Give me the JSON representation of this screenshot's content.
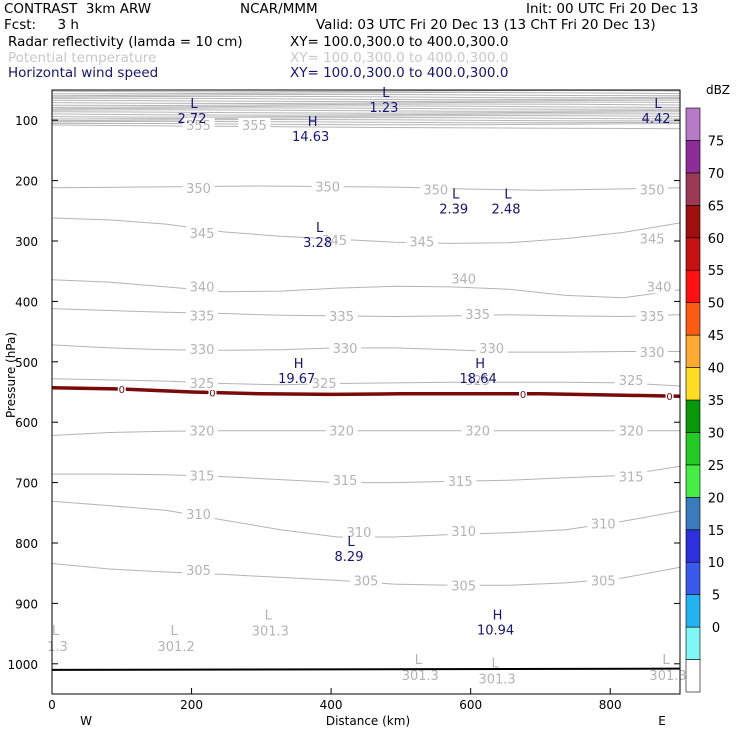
{
  "header": {
    "line1_left": "CONTRAST  3km ARW",
    "line1_center": "NCAR/MMM",
    "line1_right": "Init: 00 UTC Fri 20 Dec 13",
    "line2_left": "Fcst:     3 h",
    "line2_right": "Valid: 03 UTC Fri 20 Dec 13 (13 ChT Fri 20 Dec 13)",
    "fields": [
      {
        "name": "Radar reflectivity (lamda = 10 cm)",
        "xy": "XY= 100.0,300.0 to 400.0,300.0",
        "color": "#000000"
      },
      {
        "name": "Potential temperature",
        "xy": "XY= 100.0,300.0 to 400.0,300.0",
        "color": "#c8c8c8"
      },
      {
        "name": "Horizontal wind speed",
        "xy": "XY= 100.0,300.0 to 400.0,300.0",
        "color": "#14147a"
      }
    ]
  },
  "chart_data": {
    "type": "line",
    "xlabel": "Distance (km)",
    "ylabel": "Pressure (hPa)",
    "x_ticks": [
      0,
      200,
      400,
      600,
      800
    ],
    "xlim": [
      0,
      900
    ],
    "y_ticks": [
      100,
      200,
      300,
      400,
      500,
      600,
      700,
      800,
      900,
      1000
    ],
    "ylim": [
      50,
      1050
    ],
    "x_end_labels": {
      "left": "W",
      "right": "E"
    },
    "colorbar": {
      "unit": "dBZ",
      "levels": [
        0,
        5,
        10,
        15,
        20,
        25,
        30,
        35,
        40,
        45,
        50,
        55,
        60,
        65,
        70,
        75
      ],
      "colors": [
        "#ffffff",
        "#7ff7f7",
        "#22b4f0",
        "#3a5aee",
        "#2e2fe0",
        "#3a7bbd",
        "#44ee44",
        "#22cc22",
        "#079907",
        "#ffdd22",
        "#ffaa33",
        "#ff5a11",
        "#ff1111",
        "#c81111",
        "#a01010",
        "#9c3a55",
        "#8e2c9a",
        "#b87ac8"
      ]
    },
    "theta_contours": [
      {
        "label": "355",
        "p": [
          108,
          110,
          112,
          113,
          114
        ]
      },
      {
        "label": "350",
        "p": [
          212,
          211,
          210,
          209,
          210,
          211,
          214,
          216,
          214,
          212
        ]
      },
      {
        "label": "345",
        "p": [
          262,
          265,
          272,
          285,
          292,
          297,
          302,
          304,
          303,
          296,
          286,
          270
        ]
      },
      {
        "label": "340",
        "p": [
          364,
          368,
          376,
          384,
          383,
          378,
          375,
          376,
          380,
          390,
          394,
          381
        ]
      },
      {
        "label": "335",
        "p": [
          412,
          415,
          418,
          420,
          423,
          424,
          425,
          424,
          422,
          424,
          425,
          422
        ]
      },
      {
        "label": "330",
        "p": [
          472,
          477,
          480,
          481,
          480,
          477,
          477,
          480,
          484,
          484,
          483,
          483
        ]
      },
      {
        "label": "325",
        "p": [
          528,
          530,
          532,
          536,
          538,
          536,
          535,
          534,
          534,
          534,
          535,
          540
        ]
      },
      {
        "label": "320",
        "p": [
          622,
          617,
          615,
          614,
          614,
          614,
          614,
          614,
          614,
          614,
          614,
          614
        ]
      },
      {
        "label": "315",
        "p": [
          686,
          686,
          687,
          690,
          695,
          700,
          700,
          698,
          696,
          692,
          688,
          673
        ]
      },
      {
        "label": "310",
        "p": [
          731,
          738,
          746,
          762,
          778,
          790,
          790,
          786,
          783,
          778,
          764,
          747
        ]
      },
      {
        "label": "305",
        "p": [
          834,
          843,
          848,
          852,
          857,
          862,
          868,
          870,
          870,
          866,
          858,
          840
        ]
      }
    ],
    "theta_label_positions": [
      [
        210,
        108
      ],
      [
        290,
        108
      ],
      [
        210,
        212
      ],
      [
        395,
        210
      ],
      [
        550,
        215
      ],
      [
        860,
        215
      ],
      [
        215,
        287
      ],
      [
        405,
        298
      ],
      [
        530,
        301
      ],
      [
        860,
        296
      ],
      [
        215,
        375
      ],
      [
        590,
        362
      ],
      [
        870,
        375
      ],
      [
        215,
        423
      ],
      [
        415,
        424
      ],
      [
        610,
        421
      ],
      [
        860,
        424
      ],
      [
        215,
        479
      ],
      [
        420,
        477
      ],
      [
        630,
        477
      ],
      [
        860,
        484
      ],
      [
        215,
        535
      ],
      [
        390,
        535
      ],
      [
        610,
        530
      ],
      [
        830,
        530
      ],
      [
        215,
        614
      ],
      [
        415,
        614
      ],
      [
        610,
        614
      ],
      [
        830,
        614
      ],
      [
        215,
        688
      ],
      [
        420,
        696
      ],
      [
        585,
        697
      ],
      [
        830,
        690
      ],
      [
        210,
        752
      ],
      [
        440,
        782
      ],
      [
        590,
        780
      ],
      [
        790,
        768
      ],
      [
        210,
        845
      ],
      [
        450,
        862
      ],
      [
        590,
        870
      ],
      [
        790,
        862
      ]
    ],
    "zero_dbz_line": {
      "label": "0",
      "x": [
        0,
        100,
        200,
        300,
        400,
        500,
        600,
        700,
        800,
        900
      ],
      "p": [
        543,
        545,
        550,
        553,
        554,
        553,
        553,
        553,
        555,
        557
      ],
      "label_x": [
        100,
        230,
        675,
        885
      ]
    },
    "wind_speed_extrema": [
      {
        "type": "L",
        "value": "2.72",
        "x": 215,
        "p": 80
      },
      {
        "type": "L",
        "value": "1.23",
        "x": 490,
        "p": 62
      },
      {
        "type": "L",
        "value": "4.42",
        "x": 880,
        "p": 80
      },
      {
        "type": "H",
        "value": "14.63",
        "x": 385,
        "p": 110
      },
      {
        "type": "L",
        "value": "2.39",
        "x": 590,
        "p": 230
      },
      {
        "type": "L",
        "value": "2.48",
        "x": 665,
        "p": 230
      },
      {
        "type": "L",
        "value": "3.28",
        "x": 395,
        "p": 285
      },
      {
        "type": "H",
        "value": "19.67",
        "x": 365,
        "p": 510
      },
      {
        "type": "H",
        "value": "18.64",
        "x": 625,
        "p": 510
      },
      {
        "type": "L",
        "value": "8.29",
        "x": 440,
        "p": 805
      },
      {
        "type": "H",
        "value": "10.94",
        "x": 650,
        "p": 927
      }
    ],
    "theta_extrema": [
      {
        "type": "L",
        "value": "1.3",
        "x": 5,
        "p": 952
      },
      {
        "type": "L",
        "value": "301.2",
        "x": 175,
        "p": 952
      },
      {
        "type": "L",
        "value": "301.3",
        "x": 310,
        "p": 927
      },
      {
        "type": "L",
        "value": "301.3",
        "x": 525,
        "p": 1000
      },
      {
        "type": "L",
        "value": "301.3",
        "x": 635,
        "p": 1006
      },
      {
        "type": "L",
        "value": "301.3",
        "x": 880,
        "p": 1000
      }
    ]
  }
}
